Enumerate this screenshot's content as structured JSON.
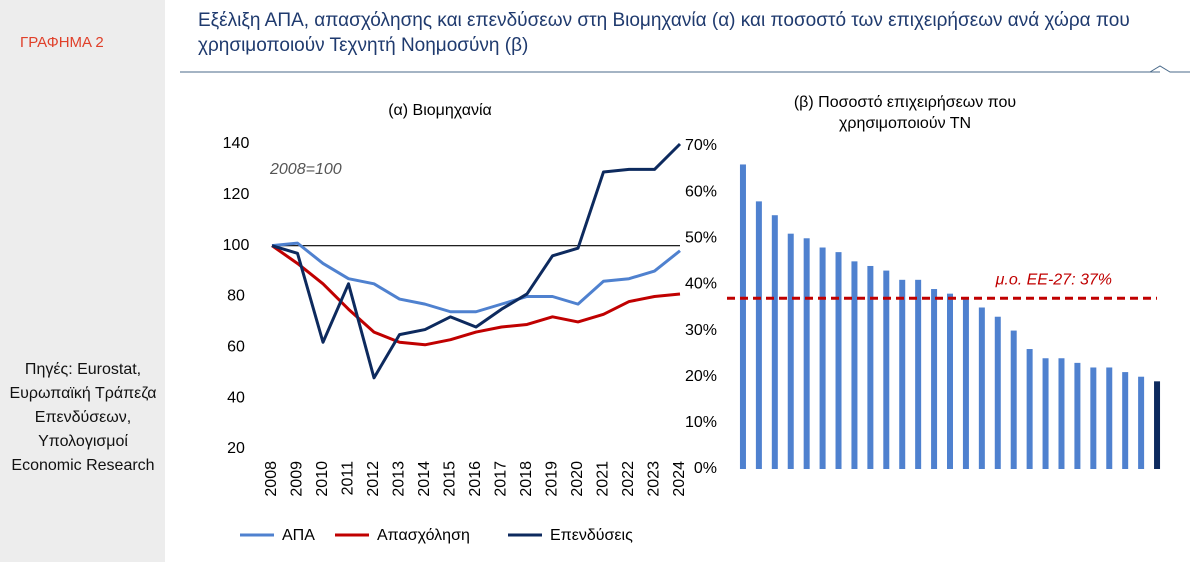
{
  "label": "ΓΡΑΦΗΜΑ 2",
  "title": "Εξέλιξη ΑΠΑ, απασχόλησης και επενδύσεων στη Βιομηχανία (α) και ποσοστό των επιχειρήσεων ανά χώρα που χρησιμοποιούν Τεχνητή Νοημοσύνη (β)",
  "sources": "Πηγές: Eurostat, Ευρωπαϊκή Τράπεζα Επενδύσεων, Υπολογισμοί Economic Research",
  "chart_data": [
    {
      "type": "line",
      "title": "(α) Βιομηχανία",
      "annotation": "2008=100",
      "categories": [
        "2008",
        "2009",
        "2010",
        "2011",
        "2012",
        "2013",
        "2014",
        "2015",
        "2016",
        "2017",
        "2018",
        "2019",
        "2020",
        "2021",
        "2022",
        "2023",
        "2024"
      ],
      "series": [
        {
          "name": "ΑΠΑ",
          "color": "#4f81cf",
          "values": [
            100,
            101,
            93,
            87,
            85,
            79,
            77,
            74,
            74,
            77,
            80,
            80,
            77,
            86,
            87,
            90,
            98
          ]
        },
        {
          "name": "Απασχόληση",
          "color": "#c00000",
          "values": [
            100,
            93,
            85,
            75,
            66,
            62,
            61,
            63,
            66,
            68,
            69,
            72,
            70,
            73,
            78,
            80,
            81
          ]
        },
        {
          "name": "Επενδύσεις",
          "color": "#0d2a5e",
          "values": [
            100,
            97,
            62,
            85,
            48,
            65,
            67,
            72,
            68,
            75,
            81,
            96,
            99,
            129,
            130,
            130,
            140
          ]
        }
      ],
      "reference_line": 100,
      "ylim": [
        20,
        140
      ],
      "yticks": [
        20,
        40,
        60,
        80,
        100,
        120,
        140
      ],
      "legend": "bottom"
    },
    {
      "type": "bar",
      "title": "(β) Ποσοστό επιχειρήσεων που χρησιμοποιούν ΤΝ",
      "categories": [
        null,
        null,
        null,
        null,
        null,
        null,
        null,
        null,
        null,
        null,
        null,
        null,
        null,
        null,
        null,
        null,
        null,
        null,
        null,
        null,
        null,
        null,
        null,
        null,
        null,
        null,
        null
      ],
      "values": [
        66,
        58,
        55,
        51,
        50,
        48,
        47,
        45,
        44,
        43,
        41,
        41,
        39,
        38,
        37,
        35,
        33,
        30,
        26,
        24,
        24,
        23,
        22,
        22,
        21,
        20,
        19
      ],
      "colors": [
        "#4f81cf",
        "#4f81cf",
        "#4f81cf",
        "#4f81cf",
        "#4f81cf",
        "#4f81cf",
        "#4f81cf",
        "#4f81cf",
        "#4f81cf",
        "#4f81cf",
        "#4f81cf",
        "#4f81cf",
        "#4f81cf",
        "#4f81cf",
        "#4f81cf",
        "#4f81cf",
        "#4f81cf",
        "#4f81cf",
        "#4f81cf",
        "#4f81cf",
        "#4f81cf",
        "#4f81cf",
        "#4f81cf",
        "#4f81cf",
        "#4f81cf",
        "#4f81cf",
        "#0d2a5e"
      ],
      "average_line": {
        "value": 37,
        "label": "μ.ο. ΕΕ-27: 37%",
        "color": "#c00000"
      },
      "ylim": [
        0,
        70
      ],
      "yticks": [
        {
          "value": 0,
          "label": "0%"
        },
        {
          "value": 10,
          "label": "10%"
        },
        {
          "value": 20,
          "label": "20%"
        },
        {
          "value": 30,
          "label": "30%"
        },
        {
          "value": 40,
          "label": "40%"
        },
        {
          "value": 50,
          "label": "50%"
        },
        {
          "value": 60,
          "label": "60%"
        },
        {
          "value": 70,
          "label": "70%"
        }
      ]
    }
  ]
}
